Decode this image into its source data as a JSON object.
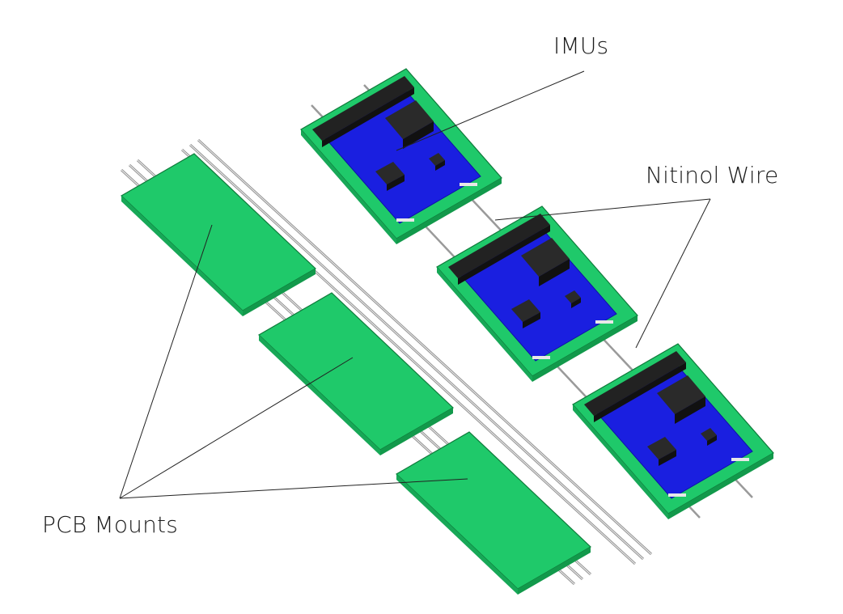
{
  "labels": {
    "imus": "IMUs",
    "nitinol_wire": "Nitinol Wire",
    "pcb_mounts": "PCB Mounts"
  },
  "colors": {
    "pcb_green": "#1fc96a",
    "pcb_green_dark": "#139a4c",
    "imu_blue": "#1a1fe0",
    "imu_blue_dark": "#0e12a8",
    "component_black": "#1d1d1d",
    "wire_gray": "#b8b8b8",
    "leader_line": "#222222"
  }
}
